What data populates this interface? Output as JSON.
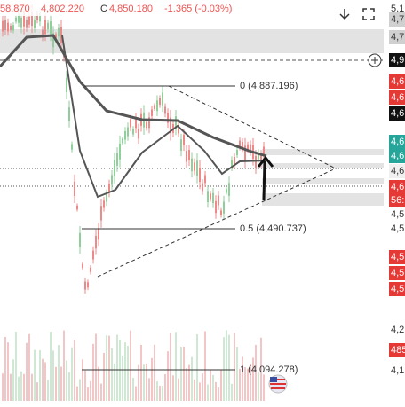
{
  "header": {
    "values": [
      "58.870",
      "4,802.220",
      "C",
      "4,850.180",
      "-1.365 (-0.03%)"
    ]
  },
  "fib_levels": [
    "0 (4,887.196)",
    "0.5 (4,490.737)",
    "1 (4,094.278)"
  ],
  "price_axis": [
    "5,1",
    "4,7",
    "4,7",
    "4,9",
    "4,6",
    "4,6",
    "4,6",
    "4,6",
    "4,6",
    "4,6",
    "4,6",
    "56:",
    "4,5",
    "4,5",
    "4,5",
    "4,5",
    "4,5",
    "4,2",
    "485",
    "4,1"
  ]
}
